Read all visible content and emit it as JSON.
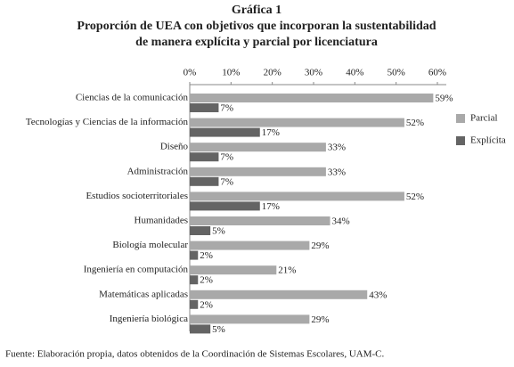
{
  "chart_data": {
    "type": "bar",
    "orientation": "horizontal",
    "title": "Gráfica 1",
    "subtitle": [
      "Proporción de UEA con objetivos que incorporan la sustentabilidad",
      "de manera explícita y parcial por licenciatura"
    ],
    "categories": [
      "Ciencias de la comunicación",
      "Tecnologías y Ciencias de la información",
      "Diseño",
      "Administración",
      "Estudios socioterritoriales",
      "Humanidades",
      "Biología molecular",
      "Ingeniería en computación",
      "Matemáticas aplicadas",
      "Ingeniería biológica"
    ],
    "series": [
      {
        "name": "Parcial",
        "color": "#a9a9a9",
        "values": [
          59,
          52,
          33,
          33,
          52,
          34,
          29,
          21,
          43,
          29
        ],
        "value_labels": [
          "59%",
          "52%",
          "33%",
          "33%",
          "52%",
          "34%",
          "29%",
          "21%",
          "43%",
          "29%"
        ]
      },
      {
        "name": "Explícita",
        "color": "#646464",
        "values": [
          7,
          17,
          7,
          7,
          17,
          5,
          2,
          2,
          2,
          5
        ],
        "value_labels": [
          "7%",
          "17%",
          "7%",
          "7%",
          "17%",
          "5%",
          "2%",
          "2%",
          "2%",
          "5%"
        ]
      }
    ],
    "xlim": [
      0,
      60
    ],
    "xticks": [
      {
        "value": 0,
        "label": "0%"
      },
      {
        "value": 10,
        "label": "10%"
      },
      {
        "value": 20,
        "label": "20%"
      },
      {
        "value": 30,
        "label": "30%"
      },
      {
        "value": 40,
        "label": "40%"
      },
      {
        "value": 50,
        "label": "50%"
      },
      {
        "value": 60,
        "label": "60%"
      }
    ],
    "legend": "right",
    "source": "Fuente: Elaboración propia, datos obtenidos de la Coordinación de Sistemas Escolares, UAM-C."
  }
}
